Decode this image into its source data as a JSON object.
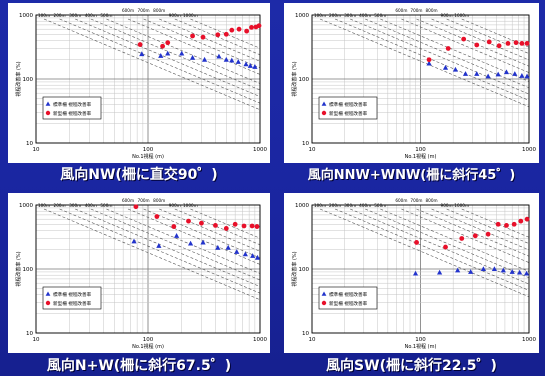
{
  "colors": {
    "background": "#1d2aa8",
    "standard_fence": "#2233cc",
    "new_fence": "#e8102a"
  },
  "charts": [
    {
      "caption": "風向NW(柵に直交90゜)",
      "chart_data": {
        "type": "scatter",
        "x_scale": "log",
        "y_scale": "log",
        "xlim": [
          10,
          1000
        ],
        "ylim": [
          10,
          1000
        ],
        "x_ticks": [
          "10",
          "100",
          "1000"
        ],
        "y_ticks": [
          "10",
          "100",
          "1000"
        ],
        "xlabel": "No.1視程 (m)",
        "ylabel": "視程改善率 (%)",
        "guide_labels": [
          "100m",
          "200m",
          "300m",
          "400m",
          "500m",
          "600m",
          "700m",
          "800m",
          "900m",
          "1000m"
        ],
        "grid": true,
        "legend_position": "bottom-left",
        "series": [
          {
            "name": "標準柵 視程改善率",
            "marker": "triangle",
            "x": [
              88,
              130,
              150,
              200,
              250,
              320,
              430,
              500,
              560,
              640,
              750,
              820,
              900
            ],
            "y": [
              245,
              230,
              250,
              250,
              215,
              200,
              225,
              200,
              195,
              185,
              170,
              160,
              155
            ]
          },
          {
            "name": "新型柵 視程改善率",
            "marker": "circle",
            "x": [
              85,
              135,
              150,
              250,
              310,
              420,
              500,
              560,
              650,
              760,
              840,
              920,
              980
            ],
            "y": [
              345,
              325,
              370,
              470,
              450,
              490,
              500,
              580,
              600,
              560,
              640,
              650,
              680
            ]
          }
        ]
      }
    },
    {
      "caption": "風向NNW+WNW(柵に斜行45゜)",
      "chart_data": {
        "type": "scatter",
        "x_scale": "log",
        "y_scale": "log",
        "xlim": [
          10,
          1000
        ],
        "ylim": [
          10,
          1000
        ],
        "x_ticks": [
          "10",
          "100",
          "1000"
        ],
        "y_ticks": [
          "10",
          "100",
          "1000"
        ],
        "xlabel": "No.1視程 (m)",
        "ylabel": "視程改善率 (%)",
        "guide_labels": [
          "100m",
          "200m",
          "300m",
          "400m",
          "500m",
          "600m",
          "700m",
          "800m",
          "900m",
          "1000m"
        ],
        "grid": true,
        "legend_position": "bottom-left",
        "series": [
          {
            "name": "標準柵 視程改善率",
            "marker": "triangle",
            "x": [
              120,
              170,
              210,
              260,
              330,
              420,
              520,
              620,
              740,
              860,
              960
            ],
            "y": [
              175,
              150,
              140,
              120,
              120,
              110,
              118,
              128,
              120,
              112,
              110
            ]
          },
          {
            "name": "新型柵 視程改善率",
            "marker": "circle",
            "x": [
              120,
              180,
              250,
              330,
              430,
              530,
              640,
              760,
              860,
              960
            ],
            "y": [
              200,
              300,
              420,
              340,
              380,
              330,
              360,
              370,
              360,
              360
            ]
          }
        ]
      }
    },
    {
      "caption": "風向N+W(柵に斜行67.5゜)",
      "chart_data": {
        "type": "scatter",
        "x_scale": "log",
        "y_scale": "log",
        "xlim": [
          10,
          1000
        ],
        "ylim": [
          10,
          1000
        ],
        "x_ticks": [
          "10",
          "100",
          "1000"
        ],
        "y_ticks": [
          "10",
          "100",
          "1000"
        ],
        "xlabel": "No.1視程 (m)",
        "ylabel": "視程改善率 (%)",
        "guide_labels": [
          "100m",
          "200m",
          "300m",
          "400m",
          "500m",
          "600m",
          "700m",
          "800m",
          "900m",
          "1000m"
        ],
        "grid": true,
        "legend_position": "bottom-left",
        "series": [
          {
            "name": "標準柵 視程改善率",
            "marker": "triangle",
            "x": [
              75,
              125,
              180,
              240,
              310,
              420,
              520,
              620,
              740,
              860,
              950
            ],
            "y": [
              270,
              230,
              330,
              250,
              260,
              215,
              215,
              185,
              170,
              160,
              150
            ]
          },
          {
            "name": "新型柵 視程改善率",
            "marker": "circle",
            "x": [
              78,
              120,
              170,
              230,
              300,
              400,
              500,
              600,
              720,
              850,
              940
            ],
            "y": [
              940,
              660,
              460,
              560,
              520,
              480,
              430,
              500,
              470,
              470,
              460
            ]
          }
        ]
      }
    },
    {
      "caption": "風向SW(柵に斜行22.5゜)",
      "chart_data": {
        "type": "scatter",
        "x_scale": "log",
        "y_scale": "log",
        "xlim": [
          10,
          1000
        ],
        "ylim": [
          10,
          1000
        ],
        "x_ticks": [
          "10",
          "100",
          "1000"
        ],
        "y_ticks": [
          "10",
          "100",
          "1000"
        ],
        "xlabel": "No.1視程 (m)",
        "ylabel": "視程改善率 (%)",
        "guide_labels": [
          "100m",
          "200m",
          "300m",
          "400m",
          "500m",
          "600m",
          "700m",
          "800m",
          "900m",
          "1000m"
        ],
        "grid": true,
        "legend_position": "bottom-left",
        "series": [
          {
            "name": "標準柵 視程改善率",
            "marker": "triangle",
            "x": [
              90,
              150,
              220,
              290,
              380,
              480,
              580,
              700,
              820,
              950
            ],
            "y": [
              85,
              88,
              95,
              90,
              100,
              100,
              95,
              90,
              88,
              85
            ]
          },
          {
            "name": "新型柵 視程改善率",
            "marker": "circle",
            "x": [
              92,
              170,
              240,
              320,
              420,
              520,
              620,
              730,
              840,
              960
            ],
            "y": [
              260,
              220,
              300,
              330,
              350,
              500,
              480,
              500,
              560,
              600
            ]
          }
        ]
      }
    }
  ]
}
